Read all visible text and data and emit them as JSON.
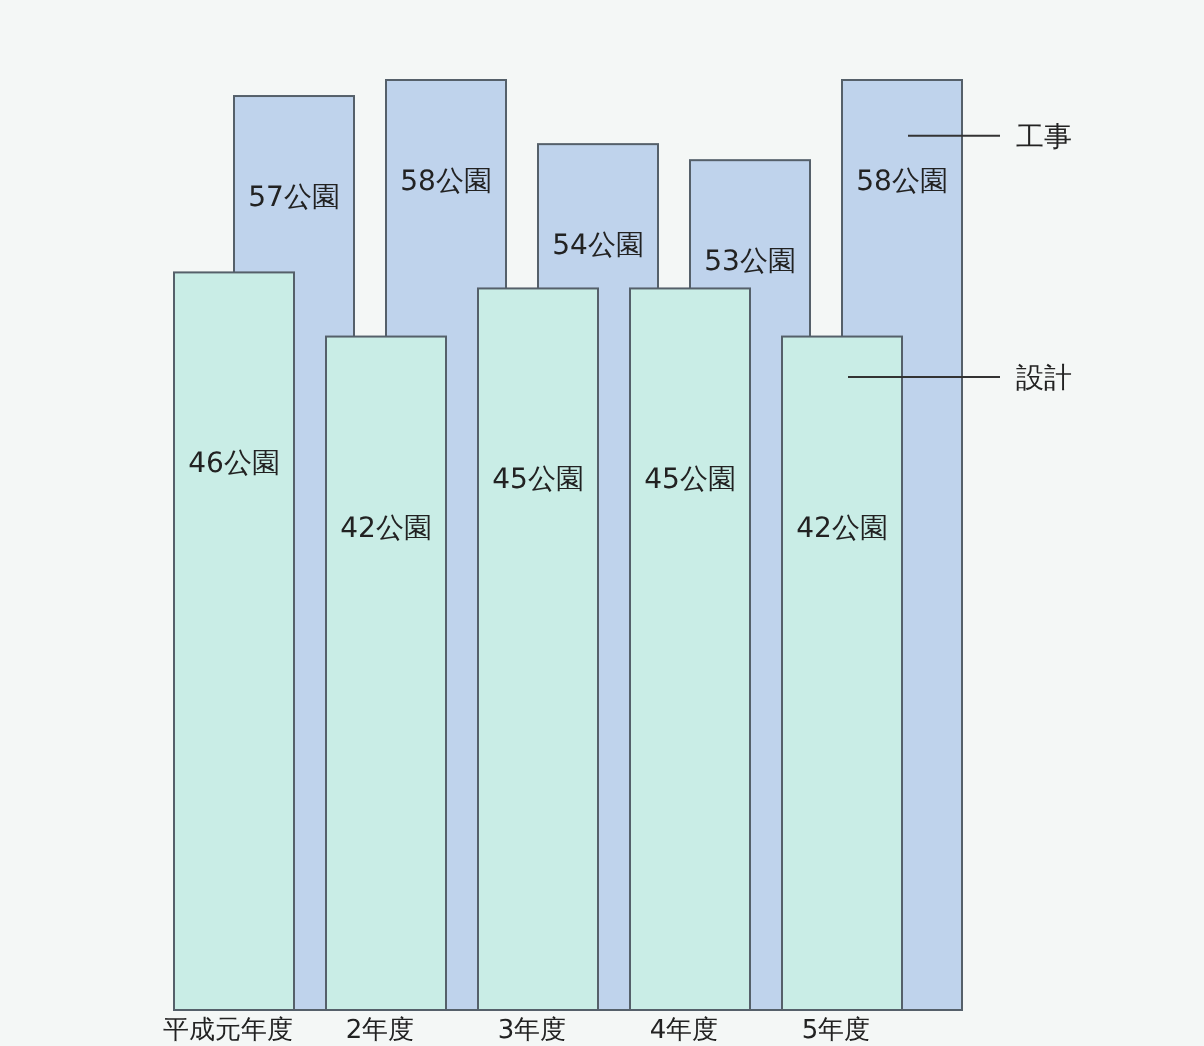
{
  "chart_data": {
    "type": "bar",
    "categories": [
      "平成元年度",
      "2年度",
      "3年度",
      "4年度",
      "5年度"
    ],
    "series": [
      {
        "name": "工事",
        "color": "#bfd3ec",
        "values": [
          57,
          58,
          54,
          53,
          58
        ],
        "value_labels": [
          "57公園",
          "58公園",
          "54公園",
          "53公園",
          "58公園"
        ]
      },
      {
        "name": "設計",
        "color": "#c9ede6",
        "values": [
          46,
          42,
          45,
          45,
          42
        ],
        "value_labels": [
          "46公園",
          "42公園",
          "45公園",
          "45公園",
          "42公園"
        ]
      }
    ]
  }
}
